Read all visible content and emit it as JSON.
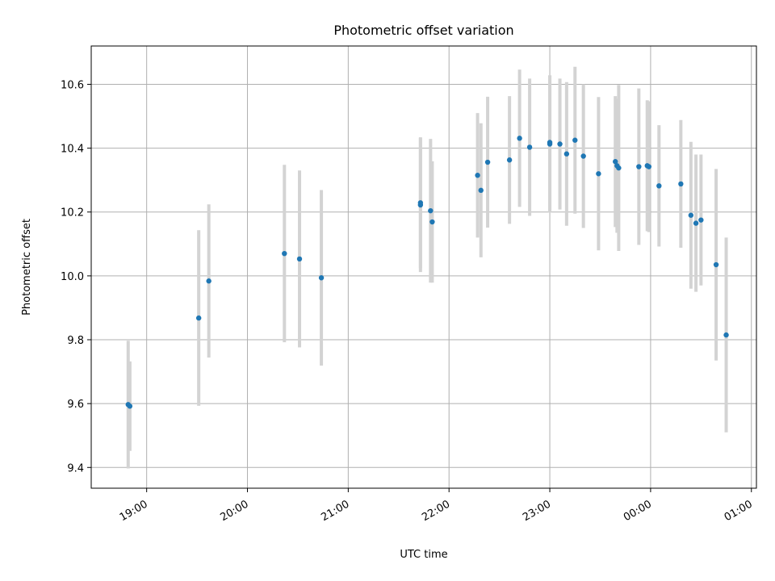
{
  "chart_data": {
    "type": "scatter",
    "title": "Photometric offset variation",
    "xlabel": "UTC time",
    "ylabel": "Photometric offset",
    "xlim": [
      "2024-01-01T18:27",
      "2024-01-02T01:03"
    ],
    "ylim": [
      9.335,
      10.72
    ],
    "x_ticks": [
      {
        "value": "2024-01-01T19:00",
        "label": "19:00"
      },
      {
        "value": "2024-01-01T20:00",
        "label": "20:00"
      },
      {
        "value": "2024-01-01T21:00",
        "label": "21:00"
      },
      {
        "value": "2024-01-01T22:00",
        "label": "22:00"
      },
      {
        "value": "2024-01-01T23:00",
        "label": "23:00"
      },
      {
        "value": "2024-01-02T00:00",
        "label": "00:00"
      },
      {
        "value": "2024-01-02T01:00",
        "label": "01:00"
      }
    ],
    "y_ticks": [
      {
        "value": 9.4,
        "label": "9.4"
      },
      {
        "value": 9.6,
        "label": "9.6"
      },
      {
        "value": 9.8,
        "label": "9.8"
      },
      {
        "value": 10.0,
        "label": "10.0"
      },
      {
        "value": 10.2,
        "label": "10.2"
      },
      {
        "value": 10.4,
        "label": "10.4"
      },
      {
        "value": 10.6,
        "label": "10.6"
      }
    ],
    "grid": true,
    "point_color": "#1f77b4",
    "errorbar_color": "#d3d3d3",
    "points": [
      {
        "x": "2024-01-01T18:49",
        "y": 9.597,
        "err": 0.2
      },
      {
        "x": "2024-01-01T18:50",
        "y": 9.592,
        "err": 0.14
      },
      {
        "x": "2024-01-01T19:31",
        "y": 9.868,
        "err": 0.275
      },
      {
        "x": "2024-01-01T19:37",
        "y": 9.984,
        "err": 0.24
      },
      {
        "x": "2024-01-01T20:22",
        "y": 10.07,
        "err": 0.278
      },
      {
        "x": "2024-01-01T20:31",
        "y": 10.053,
        "err": 0.277
      },
      {
        "x": "2024-01-01T20:44",
        "y": 9.994,
        "err": 0.275
      },
      {
        "x": "2024-01-01T21:43",
        "y": 10.222,
        "err": 0.21
      },
      {
        "x": "2024-01-01T21:43",
        "y": 10.229,
        "err": 0.205
      },
      {
        "x": "2024-01-01T21:49",
        "y": 10.204,
        "err": 0.225
      },
      {
        "x": "2024-01-01T21:50",
        "y": 10.169,
        "err": 0.19
      },
      {
        "x": "2024-01-01T22:17",
        "y": 10.315,
        "err": 0.195
      },
      {
        "x": "2024-01-01T22:19",
        "y": 10.268,
        "err": 0.21
      },
      {
        "x": "2024-01-01T22:23",
        "y": 10.356,
        "err": 0.205
      },
      {
        "x": "2024-01-01T22:36",
        "y": 10.363,
        "err": 0.2
      },
      {
        "x": "2024-01-01T22:42",
        "y": 10.431,
        "err": 0.215
      },
      {
        "x": "2024-01-01T22:48",
        "y": 10.403,
        "err": 0.215
      },
      {
        "x": "2024-01-01T23:00",
        "y": 10.413,
        "err": 0.215
      },
      {
        "x": "2024-01-01T23:00",
        "y": 10.418,
        "err": 0.21
      },
      {
        "x": "2024-01-01T23:06",
        "y": 10.413,
        "err": 0.205
      },
      {
        "x": "2024-01-01T23:10",
        "y": 10.382,
        "err": 0.225
      },
      {
        "x": "2024-01-01T23:15",
        "y": 10.425,
        "err": 0.23
      },
      {
        "x": "2024-01-01T23:20",
        "y": 10.375,
        "err": 0.225
      },
      {
        "x": "2024-01-01T23:29",
        "y": 10.32,
        "err": 0.24
      },
      {
        "x": "2024-01-01T23:39",
        "y": 10.358,
        "err": 0.205
      },
      {
        "x": "2024-01-01T23:40",
        "y": 10.345,
        "err": 0.21
      },
      {
        "x": "2024-01-01T23:41",
        "y": 10.338,
        "err": 0.26
      },
      {
        "x": "2024-01-01T23:53",
        "y": 10.342,
        "err": 0.245
      },
      {
        "x": "2024-01-01T23:58",
        "y": 10.345,
        "err": 0.205
      },
      {
        "x": "2024-01-01T23:59",
        "y": 10.342,
        "err": 0.205
      },
      {
        "x": "2024-01-02T00:05",
        "y": 10.282,
        "err": 0.19
      },
      {
        "x": "2024-01-02T00:18",
        "y": 10.288,
        "err": 0.2
      },
      {
        "x": "2024-01-02T00:24",
        "y": 10.19,
        "err": 0.23
      },
      {
        "x": "2024-01-02T00:27",
        "y": 10.165,
        "err": 0.215
      },
      {
        "x": "2024-01-02T00:30",
        "y": 10.175,
        "err": 0.205
      },
      {
        "x": "2024-01-02T00:39",
        "y": 10.035,
        "err": 0.3
      },
      {
        "x": "2024-01-02T00:45",
        "y": 9.815,
        "err": 0.305
      }
    ]
  }
}
